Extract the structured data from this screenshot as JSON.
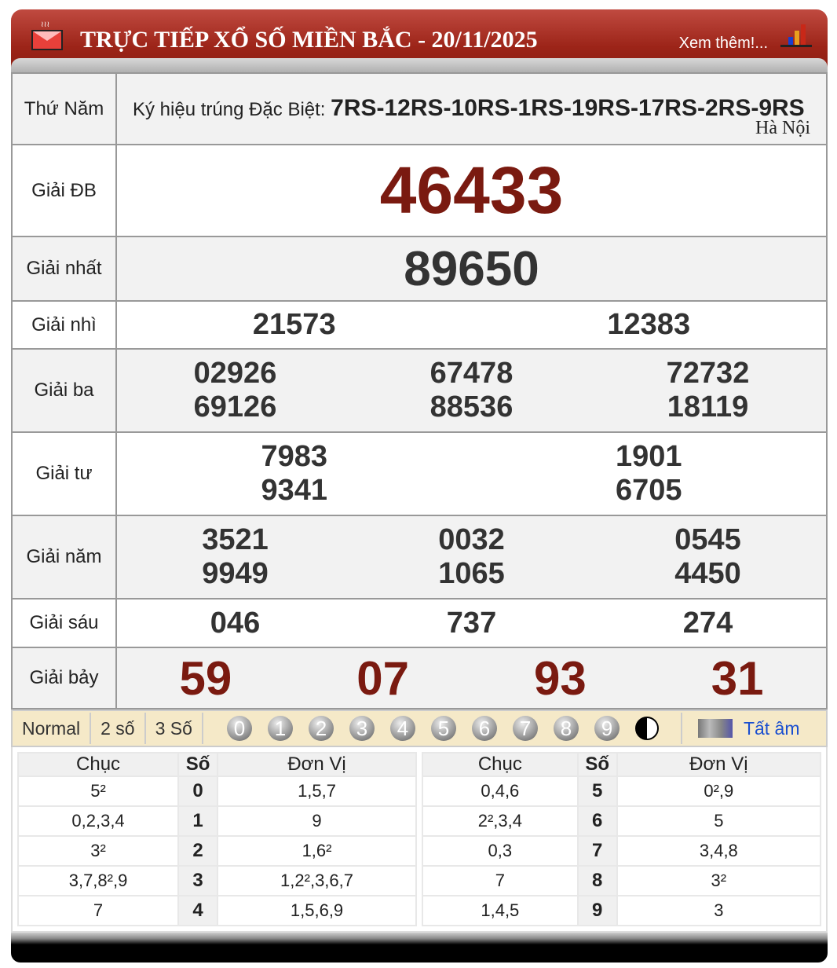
{
  "header": {
    "title": "TRỰC TIẾP XỔ SỐ MIỀN BẮC - 20/11/2025",
    "more_link": "Xem thêm!..."
  },
  "info": {
    "day": "Thứ Năm",
    "symbol_label": "Ký hiệu trúng Đặc Biệt:",
    "symbol_value": "7RS-12RS-10RS-1RS-19RS-17RS-2RS-9RS",
    "place": "Hà Nội"
  },
  "prizes": [
    {
      "label": "Giải ĐB",
      "numbers": [
        "46433"
      ]
    },
    {
      "label": "Giải nhất",
      "numbers": [
        "89650"
      ]
    },
    {
      "label": "Giải nhì",
      "numbers": [
        "21573",
        "12383"
      ]
    },
    {
      "label": "Giải ba",
      "numbers": [
        "02926",
        "67478",
        "72732",
        "69126",
        "88536",
        "18119"
      ]
    },
    {
      "label": "Giải tư",
      "numbers": [
        "7983",
        "1901",
        "9341",
        "6705"
      ]
    },
    {
      "label": "Giải năm",
      "numbers": [
        "3521",
        "0032",
        "0545",
        "9949",
        "1065",
        "4450"
      ]
    },
    {
      "label": "Giải sáu",
      "numbers": [
        "046",
        "737",
        "274"
      ]
    },
    {
      "label": "Giải bảy",
      "numbers": [
        "59",
        "07",
        "93",
        "31"
      ]
    }
  ],
  "colors": {
    "special": "#7a1a10",
    "header": "#9c2418",
    "toolbar": "#f5e9c8",
    "link": "#1a4fd0"
  },
  "toolbar": {
    "modes": [
      "Normal",
      "2 số",
      "3 Số"
    ],
    "digits": [
      "0",
      "1",
      "2",
      "3",
      "4",
      "5",
      "6",
      "7",
      "8",
      "9"
    ],
    "mute_label": "Tất âm"
  },
  "loto": {
    "headers": [
      "Chục",
      "Số",
      "Đơn Vị"
    ],
    "left": [
      [
        "5²",
        "0",
        "1,5,7"
      ],
      [
        "0,2,3,4",
        "1",
        "9"
      ],
      [
        "3²",
        "2",
        "1,6²"
      ],
      [
        "3,7,8²,9",
        "3",
        "1,2²,3,6,7"
      ],
      [
        "7",
        "4",
        "1,5,6,9"
      ]
    ],
    "right": [
      [
        "0,4,6",
        "5",
        "0²,9"
      ],
      [
        "2²,3,4",
        "6",
        "5"
      ],
      [
        "0,3",
        "7",
        "3,4,8"
      ],
      [
        "7",
        "8",
        "3²"
      ],
      [
        "1,4,5",
        "9",
        "3"
      ]
    ]
  }
}
